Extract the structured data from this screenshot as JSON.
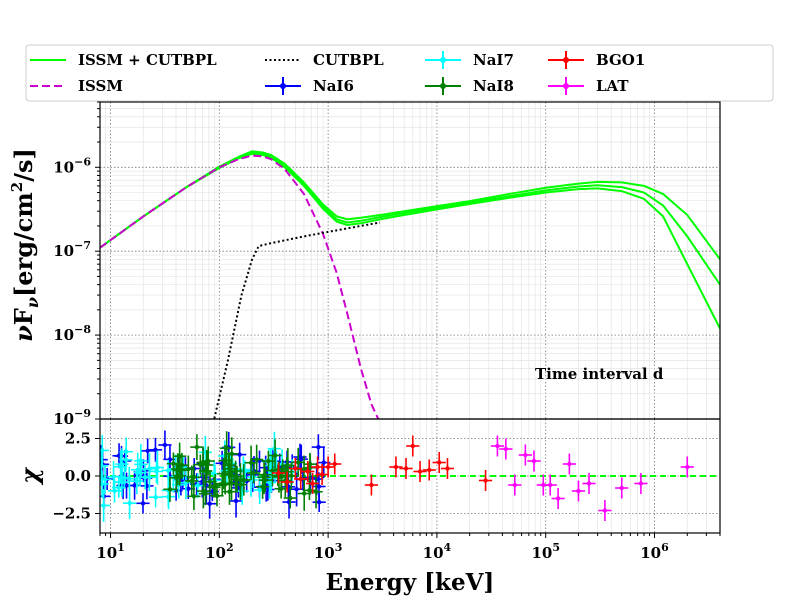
{
  "chart_data": [
    {
      "type": "line",
      "panel": "spectrum",
      "xscale": "log",
      "yscale": "log",
      "xlim": [
        8,
        4000000
      ],
      "ylim": [
        1e-09,
        6e-06
      ],
      "ylabel": "νFν[erg/cm²/s]",
      "ylabel_parts": [
        "ν",
        "F",
        "ν",
        "[erg/cm",
        "2",
        "/s]"
      ],
      "yticks": [
        {
          "value": 1e-09,
          "base": "10",
          "exp": "−9"
        },
        {
          "value": 1e-08,
          "base": "10",
          "exp": "−8"
        },
        {
          "value": 1e-07,
          "base": "10",
          "exp": "−7"
        },
        {
          "value": 1e-06,
          "base": "10",
          "exp": "−6"
        }
      ],
      "annotation": "Time interval d",
      "grid": true,
      "series": [
        {
          "name": "ISSM + CUTBPL",
          "color": "#00ff00",
          "style": "solid",
          "band": 3,
          "x": [
            8,
            20,
            50,
            100,
            150,
            200,
            250,
            300,
            400,
            600,
            900,
            1200,
            1500,
            2000,
            3000,
            5000,
            10000,
            20000,
            50000,
            100000,
            200000,
            300000,
            500000,
            800000,
            1200000,
            2000000,
            4000000
          ],
          "y": [
            1.1e-07,
            2.6e-07,
            5.8e-07,
            1e-06,
            1.3e-06,
            1.5e-06,
            1.45e-06,
            1.35e-06,
            1.05e-06,
            6.3e-07,
            3.4e-07,
            2.4e-07,
            2.2e-07,
            2.3e-07,
            2.55e-07,
            2.85e-07,
            3.3e-07,
            3.8e-07,
            4.6e-07,
            5.3e-07,
            5.9e-07,
            6.1e-07,
            5.8e-07,
            5e-07,
            3.5e-07,
            1.5e-07,
            4e-08
          ],
          "y_upper": [
            1.1e-07,
            2.6e-07,
            5.8e-07,
            1.02e-06,
            1.33e-06,
            1.55e-06,
            1.5e-06,
            1.4e-06,
            1.1e-06,
            6.6e-07,
            3.6e-07,
            2.6e-07,
            2.4e-07,
            2.5e-07,
            2.7e-07,
            3e-07,
            3.45e-07,
            3.95e-07,
            4.9e-07,
            5.7e-07,
            6.4e-07,
            6.7e-07,
            6.6e-07,
            6e-07,
            4.8e-07,
            2.7e-07,
            8e-08
          ],
          "y_lower": [
            1.1e-07,
            2.6e-07,
            5.8e-07,
            9.8e-07,
            1.28e-06,
            1.45e-06,
            1.4e-06,
            1.3e-06,
            1e-06,
            6e-07,
            3.2e-07,
            2.25e-07,
            2.05e-07,
            2.15e-07,
            2.4e-07,
            2.7e-07,
            3.15e-07,
            3.65e-07,
            4.4e-07,
            5e-07,
            5.5e-07,
            5.6e-07,
            5.2e-07,
            4.2e-07,
            2.6e-07,
            7e-08,
            1.2e-08
          ]
        },
        {
          "name": "ISSM",
          "color": "#cc00cc",
          "style": "dashed",
          "x": [
            8,
            20,
            50,
            100,
            150,
            200,
            250,
            300,
            400,
            600,
            900,
            1200,
            1500,
            2000,
            2500,
            3000
          ],
          "y": [
            1.1e-07,
            2.6e-07,
            5.8e-07,
            1e-06,
            1.25e-06,
            1.38e-06,
            1.35e-06,
            1.25e-06,
            9.5e-07,
            4.8e-07,
            1.6e-07,
            5.5e-08,
            1.8e-08,
            4e-09,
            1.5e-09,
            9e-10
          ]
        },
        {
          "name": "CUTBPL",
          "color": "#000000",
          "style": "dotted",
          "x": [
            88,
            120,
            160,
            200,
            230,
            300,
            600,
            1000,
            2000,
            3000
          ],
          "y": [
            9e-10,
            5e-09,
            3e-08,
            8e-08,
            1.15e-07,
            1.25e-07,
            1.5e-07,
            1.7e-07,
            2e-07,
            2.2e-07
          ]
        }
      ]
    },
    {
      "type": "scatter",
      "panel": "residuals",
      "xlabel": "Energy [keV]",
      "ylabel": "χ",
      "xscale": "log",
      "xlim": [
        8,
        4000000
      ],
      "ylim": [
        -3.8,
        3.8
      ],
      "xticks": [
        {
          "value": 10,
          "base": "10",
          "exp": "1"
        },
        {
          "value": 100,
          "base": "10",
          "exp": "2"
        },
        {
          "value": 1000,
          "base": "10",
          "exp": "3"
        },
        {
          "value": 10000,
          "base": "10",
          "exp": "4"
        },
        {
          "value": 100000,
          "base": "10",
          "exp": "5"
        },
        {
          "value": 1000000,
          "base": "10",
          "exp": "6"
        }
      ],
      "yticks": [
        {
          "value": -2.5,
          "label": "−2.5"
        },
        {
          "value": 0,
          "label": "0.0"
        },
        {
          "value": 2.5,
          "label": "2.5"
        }
      ],
      "zero_line_color": "#00ff00",
      "series": [
        {
          "name": "NaI6",
          "color": "#0000ff",
          "marker": "dot",
          "count": 70,
          "x_range": [
            8,
            950
          ],
          "spread": 1.25,
          "seed": 11,
          "yerr": 0.9
        },
        {
          "name": "NaI7",
          "color": "#00ffff",
          "marker": "dot",
          "count": 60,
          "x_range": [
            8,
            600
          ],
          "spread": 1.2,
          "seed": 23,
          "yerr": 0.9
        },
        {
          "name": "NaI8",
          "color": "#008000",
          "marker": "dot",
          "count": 70,
          "x_range": [
            35,
            900
          ],
          "spread": 1.2,
          "seed": 37,
          "yerr": 0.9
        },
        {
          "name": "BGO1",
          "color": "#ff0000",
          "marker": "dot",
          "series_points": [
            {
              "x": 350,
              "y": 0.2
            },
            {
              "x": 420,
              "y": -0.4
            },
            {
              "x": 500,
              "y": 0.5
            },
            {
              "x": 560,
              "y": -0.2
            },
            {
              "x": 650,
              "y": 0.3
            },
            {
              "x": 720,
              "y": -0.5
            },
            {
              "x": 800,
              "y": 0.6
            },
            {
              "x": 880,
              "y": 0.1
            },
            {
              "x": 1000,
              "y": 0.6
            },
            {
              "x": 1150,
              "y": 0.8
            },
            {
              "x": 2500,
              "y": -0.6
            },
            {
              "x": 4200,
              "y": 0.6
            },
            {
              "x": 5200,
              "y": 0.5
            },
            {
              "x": 6000,
              "y": 2.0
            },
            {
              "x": 7000,
              "y": 0.3
            },
            {
              "x": 8500,
              "y": 0.4
            },
            {
              "x": 10500,
              "y": 0.9
            },
            {
              "x": 12500,
              "y": 0.5
            },
            {
              "x": 28000,
              "y": -0.3
            }
          ]
        },
        {
          "name": "LAT",
          "color": "#ff00ff",
          "marker": "dot",
          "series_points": [
            {
              "x": 36000,
              "y": 2.0
            },
            {
              "x": 43000,
              "y": 1.8
            },
            {
              "x": 52000,
              "y": -0.6
            },
            {
              "x": 65000,
              "y": 1.4
            },
            {
              "x": 78000,
              "y": 1.0
            },
            {
              "x": 95000,
              "y": -0.6
            },
            {
              "x": 110000,
              "y": -0.6
            },
            {
              "x": 130000,
              "y": -1.5
            },
            {
              "x": 165000,
              "y": 0.8
            },
            {
              "x": 200000,
              "y": -1.0
            },
            {
              "x": 250000,
              "y": -0.5
            },
            {
              "x": 350000,
              "y": -2.3
            },
            {
              "x": 500000,
              "y": -0.8
            },
            {
              "x": 750000,
              "y": -0.5
            },
            {
              "x": 2000000,
              "y": 0.6
            }
          ]
        }
      ]
    }
  ],
  "legend": {
    "items": [
      {
        "label": "ISSM + CUTBPL",
        "color": "#00ff00",
        "kind": "line-solid"
      },
      {
        "label": "ISSM",
        "color": "#cc00cc",
        "kind": "line-dashed"
      },
      {
        "label": "CUTBPL",
        "color": "#000000",
        "kind": "line-dotted"
      },
      {
        "label": "NaI6",
        "color": "#0000ff",
        "kind": "errorbar"
      },
      {
        "label": "NaI7",
        "color": "#00ffff",
        "kind": "errorbar"
      },
      {
        "label": "NaI8",
        "color": "#008000",
        "kind": "errorbar"
      },
      {
        "label": "BGO1",
        "color": "#ff0000",
        "kind": "errorbar"
      },
      {
        "label": "LAT",
        "color": "#ff00ff",
        "kind": "errorbar"
      }
    ]
  }
}
